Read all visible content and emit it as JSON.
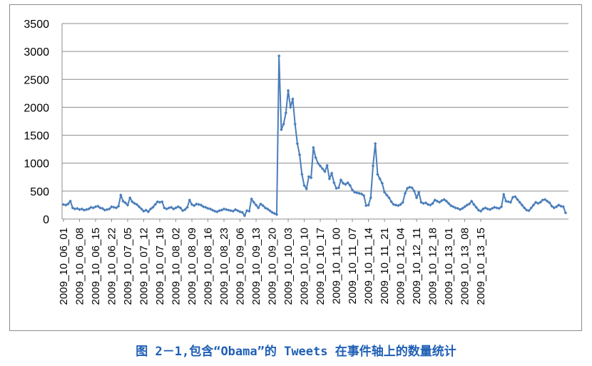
{
  "chart_data": {
    "type": "line",
    "title": "",
    "xlabel": "",
    "ylabel": "",
    "ylim": [
      0,
      3500
    ],
    "yticks": [
      0,
      500,
      1000,
      1500,
      2000,
      2500,
      3000,
      3500
    ],
    "grid": "horizontal",
    "color": "#4a7ebb",
    "x_tick_labels": [
      "2009_10_06_01",
      "2009_10_06_08",
      "2009_10_06_15",
      "2009_10_06_22",
      "2009_10_07_05",
      "2009_10_07_12",
      "2009_10_07_19",
      "2009_10_08_02",
      "2009_10_08_09",
      "2009_10_08_16",
      "2009_10_08_23",
      "2009_10_09_06",
      "2009_10_09_13",
      "2009_10_09_20",
      "2009_10_10_03",
      "2009_10_10_10",
      "2009_10_10_17",
      "2009_10_11_00",
      "2009_10_11_07",
      "2009_10_11_14",
      "2009_10_11_21",
      "2009_10_12_04",
      "2009_10_12_11",
      "2009_10_12_18",
      "2009_10_13_01",
      "2009_10_13_08",
      "2009_10_13_15"
    ],
    "series": [
      {
        "values": [
          260,
          250,
          270,
          320,
          200,
          180,
          190,
          170,
          180,
          160,
          170,
          180,
          210,
          200,
          220,
          230,
          200,
          190,
          160,
          170,
          180,
          220,
          210,
          200,
          230,
          430,
          320,
          290,
          250,
          380,
          310,
          280,
          260,
          220,
          180,
          140,
          160,
          130,
          180,
          210,
          260,
          310,
          300,
          310,
          200,
          180,
          200,
          210,
          180,
          200,
          220,
          200,
          150,
          170,
          210,
          340,
          260,
          240,
          270,
          260,
          250,
          220,
          210,
          190,
          180,
          160,
          140,
          130,
          150,
          160,
          180,
          170,
          160,
          150,
          140,
          170,
          150,
          130,
          120,
          60,
          150,
          140,
          360,
          300,
          250,
          200,
          270,
          240,
          200,
          180,
          150,
          120,
          100,
          80,
          2920,
          1600,
          1700,
          1900,
          2300,
          2000,
          2150,
          1700,
          1350,
          1150,
          800,
          600,
          540,
          760,
          740,
          1280,
          1100,
          1000,
          950,
          900,
          850,
          960,
          720,
          820,
          650,
          550,
          560,
          700,
          640,
          620,
          650,
          600,
          520,
          480,
          470,
          460,
          450,
          420,
          240,
          250,
          380,
          950,
          1350,
          800,
          720,
          640,
          480,
          430,
          380,
          310,
          260,
          250,
          240,
          260,
          300,
          460,
          550,
          570,
          560,
          500,
          380,
          480,
          300,
          280,
          290,
          260,
          250,
          280,
          340,
          320,
          300,
          330,
          350,
          320,
          280,
          240,
          220,
          200,
          190,
          170,
          190,
          220,
          250,
          270,
          320,
          260,
          210,
          160,
          140,
          180,
          200,
          180,
          170,
          190,
          210,
          200,
          190,
          220,
          440,
          320,
          310,
          300,
          390,
          400,
          350,
          300,
          250,
          200,
          160,
          150,
          200,
          250,
          300,
          280,
          300,
          340,
          350,
          320,
          290,
          230,
          200,
          220,
          250,
          230,
          220,
          110
        ]
      }
    ]
  },
  "caption": "图 2－1,包含“Obama”的 Tweets 在事件轴上的数量统计"
}
